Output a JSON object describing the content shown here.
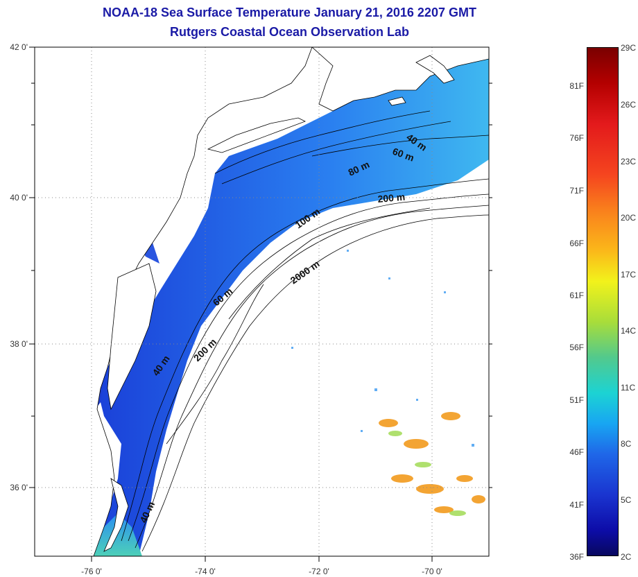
{
  "title": {
    "line1": "NOAA-18 Sea Surface Temperature January 21, 2016 2207 GMT",
    "line2": "Rutgers Coastal Ocean Observation Lab"
  },
  "axes": {
    "x_ticks": [
      "-76 0'",
      "-74 0'",
      "-72 0'",
      "-70 0'"
    ],
    "y_ticks": [
      "42 0'",
      "40 0'",
      "38 0'",
      "36 0'"
    ]
  },
  "depth_contour_labels": [
    "40 m",
    "60 m",
    "80 m",
    "200 m",
    "100 m",
    "2000 m",
    "60 m",
    "40 m",
    "200 m",
    "40 m"
  ],
  "colorbar": {
    "fahrenheit": [
      "81F",
      "76F",
      "71F",
      "66F",
      "61F",
      "56F",
      "51F",
      "46F",
      "41F",
      "36F"
    ],
    "celsius": [
      "29C",
      "26C",
      "23C",
      "20C",
      "17C",
      "14C",
      "11C",
      "8C",
      "5C",
      "2C"
    ]
  },
  "colors": {
    "title": "#1a1aa6",
    "land": "#ffffff",
    "water_cold": "#1f4fe0",
    "water_cool": "#2aa8ee",
    "water_warm": "#f29b1e",
    "coastline": "#000000",
    "grid": "#888888"
  }
}
